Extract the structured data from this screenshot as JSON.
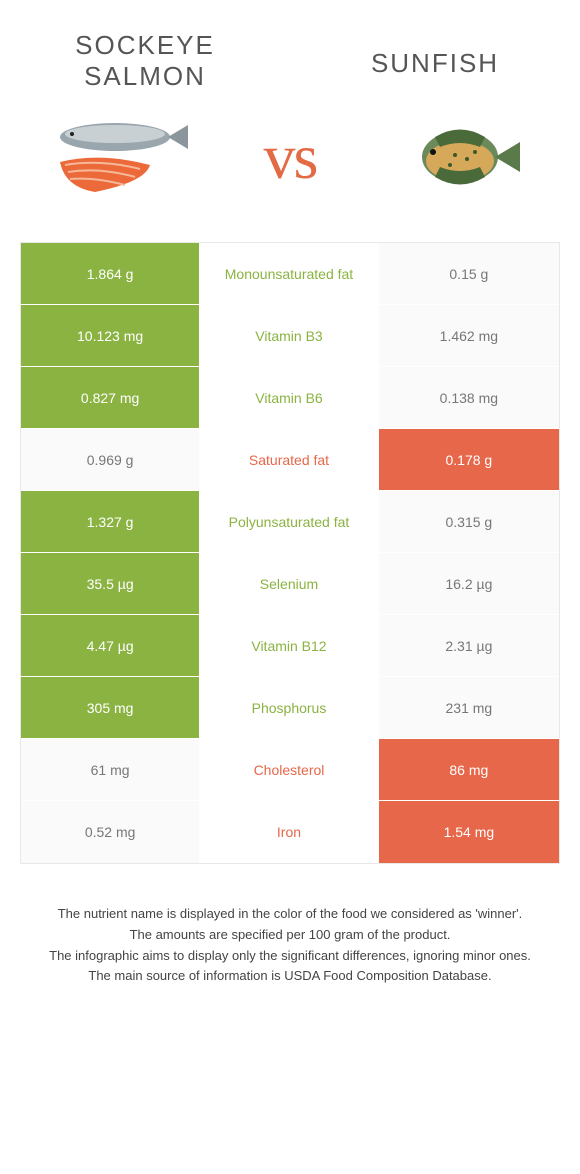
{
  "header": {
    "left_title": "SOCKEYE SALMON",
    "right_title": "SUNFISH",
    "vs": "vs"
  },
  "colors": {
    "left_winner": "#8bb341",
    "right_winner": "#e7674a",
    "plain_bg": "#fafafa",
    "plain_text": "#777777",
    "mid_left_text": "#8bb341",
    "mid_right_text": "#e7674a"
  },
  "rows": [
    {
      "left": "1.864 g",
      "label": "Monounsaturated fat",
      "right": "0.15 g",
      "winner": "left"
    },
    {
      "left": "10.123 mg",
      "label": "Vitamin B3",
      "right": "1.462 mg",
      "winner": "left"
    },
    {
      "left": "0.827 mg",
      "label": "Vitamin B6",
      "right": "0.138 mg",
      "winner": "left"
    },
    {
      "left": "0.969 g",
      "label": "Saturated fat",
      "right": "0.178 g",
      "winner": "right"
    },
    {
      "left": "1.327 g",
      "label": "Polyunsaturated fat",
      "right": "0.315 g",
      "winner": "left"
    },
    {
      "left": "35.5 µg",
      "label": "Selenium",
      "right": "16.2 µg",
      "winner": "left"
    },
    {
      "left": "4.47 µg",
      "label": "Vitamin B12",
      "right": "2.31 µg",
      "winner": "left"
    },
    {
      "left": "305 mg",
      "label": "Phosphorus",
      "right": "231 mg",
      "winner": "left"
    },
    {
      "left": "61 mg",
      "label": "Cholesterol",
      "right": "86 mg",
      "winner": "right"
    },
    {
      "left": "0.52 mg",
      "label": "Iron",
      "right": "1.54 mg",
      "winner": "right"
    }
  ],
  "footer": {
    "line1": "The nutrient name is displayed in the color of the food we considered as 'winner'.",
    "line2": "The amounts are specified per 100 gram of the product.",
    "line3": "The infographic aims to display only the significant differences, ignoring minor ones.",
    "line4": "The main source of information is USDA Food Composition Database."
  }
}
